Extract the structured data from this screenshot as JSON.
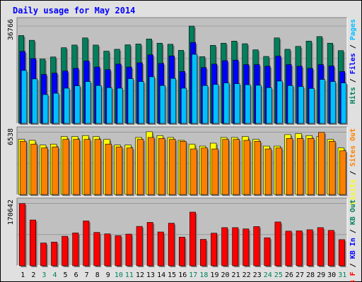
{
  "chart_data": {
    "type": "bar",
    "title": "Daily usage for May 2014",
    "categories": [
      "1",
      "2",
      "3",
      "4",
      "5",
      "6",
      "7",
      "8",
      "9",
      "10",
      "11",
      "12",
      "13",
      "14",
      "15",
      "16",
      "17",
      "18",
      "19",
      "20",
      "21",
      "22",
      "23",
      "24",
      "25",
      "26",
      "27",
      "28",
      "29",
      "30",
      "31"
    ],
    "weekend_days": [
      "3",
      "4",
      "10",
      "11",
      "17",
      "18",
      "24",
      "25",
      "31"
    ],
    "colors": {
      "hits": "#00805c",
      "files": "#0000ff",
      "pages": "#00c0ff",
      "visits": "#ffff00",
      "sites": "#ff8000",
      "kbytes": "#ff0000",
      "weekday_label": "#000000",
      "weekend_label": "#00805c",
      "title": "#0000ff",
      "plot_bg": "#c0c0c0",
      "frame_bg": "#e0e0e0"
    },
    "panels": [
      {
        "id": "hits_files_pages",
        "max_label": "36766",
        "max": 36766,
        "legend": [
          {
            "text": "Hits",
            "color": "#00805c"
          },
          {
            "text": "/",
            "color": "#000000"
          },
          {
            "text": "Files",
            "color": "#0000ff"
          },
          {
            "text": "/",
            "color": "#000000"
          },
          {
            "text": "Pages",
            "color": "#00c0ff"
          }
        ],
        "series": [
          {
            "name": "Hits",
            "color": "#00805c",
            "values": [
              33200,
              31400,
              24300,
              25100,
              28600,
              29600,
              32300,
              29600,
              27300,
              28000,
              29700,
              30000,
              31900,
              30300,
              29900,
              27600,
              36766,
              25200,
              29500,
              30300,
              31100,
              30100,
              27800,
              25300,
              32300,
              28000,
              29100,
              31100,
              32800,
              30300,
              27500
            ]
          },
          {
            "name": "Files",
            "color": "#0000ff",
            "values": [
              27200,
              24500,
              18500,
              19000,
              19800,
              20800,
              23600,
              21300,
              20300,
              22400,
              21300,
              22900,
              25900,
              22700,
              25500,
              19600,
              30600,
              21100,
              22400,
              23700,
              23900,
              22200,
              22200,
              21600,
              25400,
              22200,
              21600,
              20800,
              22200,
              21700,
              19600
            ]
          },
          {
            "name": "Pages",
            "color": "#00c0ff",
            "values": [
              20000,
              16800,
              10900,
              11400,
              13300,
              14200,
              15800,
              14300,
              13500,
              13300,
              16900,
              15800,
              17600,
              14300,
              17000,
              13300,
              26100,
              14300,
              14700,
              15300,
              15000,
              14600,
              14400,
              13500,
              16000,
              14300,
              13900,
              13200,
              16600,
              15800,
              15300
            ]
          }
        ]
      },
      {
        "id": "visits_sites",
        "max_label": "6538",
        "max": 6538,
        "legend": [
          {
            "text": "Visits",
            "color": "#ffff00"
          },
          {
            "text": "/",
            "color": "#000000"
          },
          {
            "text": "Sites",
            "color": "#ff8000"
          },
          {
            "text": "Out",
            "color": "#ff8000"
          }
        ],
        "series": [
          {
            "name": "Visits",
            "color": "#ffff00",
            "values": [
              5800,
              5700,
              5200,
              5300,
              6100,
              6100,
              6200,
              6100,
              5800,
              5200,
              5200,
              6000,
              6600,
              6200,
              6000,
              5700,
              5300,
              5100,
              5400,
              6000,
              6000,
              6100,
              5800,
              5100,
              5100,
              6300,
              6400,
              6200,
              6100,
              5800,
              4900
            ]
          },
          {
            "name": "Sites",
            "color": "#ff8000",
            "values": [
              5600,
              5300,
              4900,
              5000,
              5800,
              5800,
              5800,
              5800,
              5300,
              5000,
              4900,
              5800,
              6000,
              5900,
              5800,
              5600,
              4800,
              4900,
              4800,
              5800,
              5800,
              5700,
              5600,
              4800,
              4900,
              5900,
              5900,
              5900,
              6538,
              5600,
              4600
            ]
          }
        ]
      },
      {
        "id": "kbytes",
        "max_label": "170642",
        "max": 170642,
        "legend": [
          {
            "text": "KB F",
            "color": "#ff0000"
          },
          {
            "text": "/",
            "color": "#000000"
          },
          {
            "text": "KB In",
            "color": "#0000ff"
          },
          {
            "text": "/",
            "color": "#000000"
          },
          {
            "text": "KB Out",
            "color": "#00805c"
          }
        ],
        "series": [
          {
            "name": "KB F",
            "color": "#ff0000",
            "values": [
              170642,
              125500,
              62400,
              64900,
              80900,
              90000,
              123000,
              91500,
              87500,
              82700,
              86900,
              108000,
              119000,
              92700,
              116800,
              78500,
              147000,
              72400,
              89400,
              104600,
              104600,
              101100,
              107600,
              76800,
              120100,
              95000,
              95700,
              98800,
              104600,
              97000,
              71700
            ]
          }
        ]
      }
    ]
  }
}
